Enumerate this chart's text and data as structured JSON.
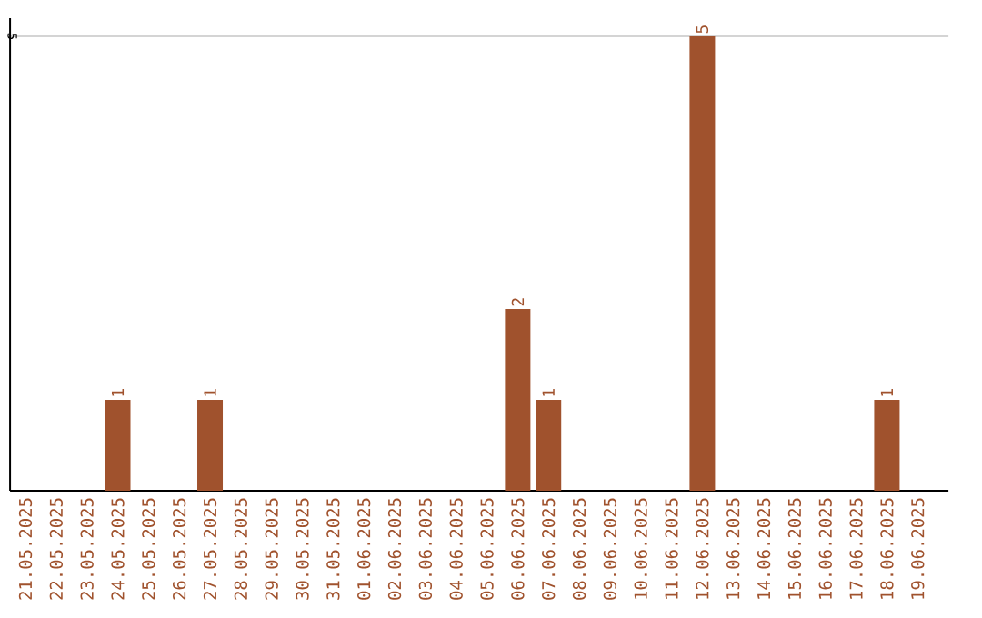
{
  "chart_data": {
    "type": "bar",
    "categories": [
      "21.05.2025",
      "22.05.2025",
      "23.05.2025",
      "24.05.2025",
      "25.05.2025",
      "26.05.2025",
      "27.05.2025",
      "28.05.2025",
      "29.05.2025",
      "30.05.2025",
      "31.05.2025",
      "01.06.2025",
      "02.06.2025",
      "03.06.2025",
      "04.06.2025",
      "05.06.2025",
      "06.06.2025",
      "07.06.2025",
      "08.06.2025",
      "09.06.2025",
      "10.06.2025",
      "11.06.2025",
      "12.06.2025",
      "13.06.2025",
      "14.06.2025",
      "15.06.2025",
      "16.06.2025",
      "17.06.2025",
      "18.06.2025",
      "19.06.2025"
    ],
    "values": [
      0,
      0,
      0,
      1,
      0,
      0,
      1,
      0,
      0,
      0,
      0,
      0,
      0,
      0,
      0,
      0,
      2,
      1,
      0,
      0,
      0,
      0,
      5,
      0,
      0,
      0,
      0,
      0,
      1,
      0
    ],
    "value_labels": [
      null,
      null,
      null,
      "1",
      null,
      null,
      "1",
      null,
      null,
      null,
      null,
      null,
      null,
      null,
      null,
      null,
      "2",
      "1",
      null,
      null,
      null,
      null,
      "5",
      null,
      null,
      null,
      null,
      null,
      "1",
      null
    ],
    "color": "#a0522d",
    "ylim": [
      0,
      5.2
    ],
    "yticks": [
      5
    ],
    "grid": "y"
  }
}
